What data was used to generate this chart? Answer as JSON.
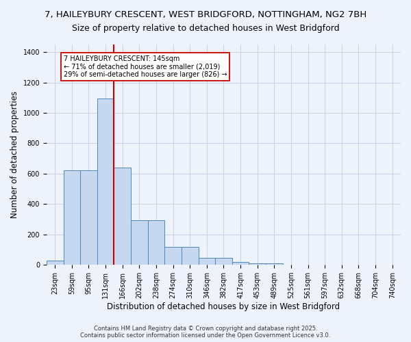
{
  "title_line1": "7, HAILEYBURY CRESCENT, WEST BRIDGFORD, NOTTINGHAM, NG2 7BH",
  "title_line2": "Size of property relative to detached houses in West Bridgford",
  "xlabel": "Distribution of detached houses by size in West Bridgford",
  "ylabel": "Number of detached properties",
  "categories": [
    "23sqm",
    "59sqm",
    "95sqm",
    "131sqm",
    "166sqm",
    "202sqm",
    "238sqm",
    "274sqm",
    "310sqm",
    "346sqm",
    "382sqm",
    "417sqm",
    "453sqm",
    "489sqm",
    "525sqm",
    "561sqm",
    "597sqm",
    "632sqm",
    "668sqm",
    "704sqm",
    "740sqm"
  ],
  "values": [
    30,
    620,
    620,
    1095,
    640,
    295,
    295,
    120,
    120,
    47,
    47,
    20,
    10,
    10,
    0,
    0,
    0,
    0,
    0,
    0,
    0
  ],
  "bar_color": "#c5d8f0",
  "bar_edge_color": "#4f86c0",
  "vline_color": "#cc0000",
  "vline_pos": 3.5,
  "annotation_text": "7 HAILEYBURY CRESCENT: 145sqm\n← 71% of detached houses are smaller (2,019)\n29% of semi-detached houses are larger (826) →",
  "annotation_box_edgecolor": "#cc0000",
  "ylim": [
    0,
    1450
  ],
  "yticks": [
    0,
    200,
    400,
    600,
    800,
    1000,
    1200,
    1400
  ],
  "grid_color": "#c8cfe8",
  "bg_color": "#eef2fb",
  "footer_line1": "Contains HM Land Registry data © Crown copyright and database right 2025.",
  "footer_line2": "Contains public sector information licensed under the Open Government Licence v3.0.",
  "title_fontsize": 9.5,
  "subtitle_fontsize": 9,
  "ylabel_fontsize": 8.5,
  "xlabel_fontsize": 8.5,
  "tick_fontsize": 7,
  "annotation_fontsize": 7,
  "footer_fontsize": 6
}
